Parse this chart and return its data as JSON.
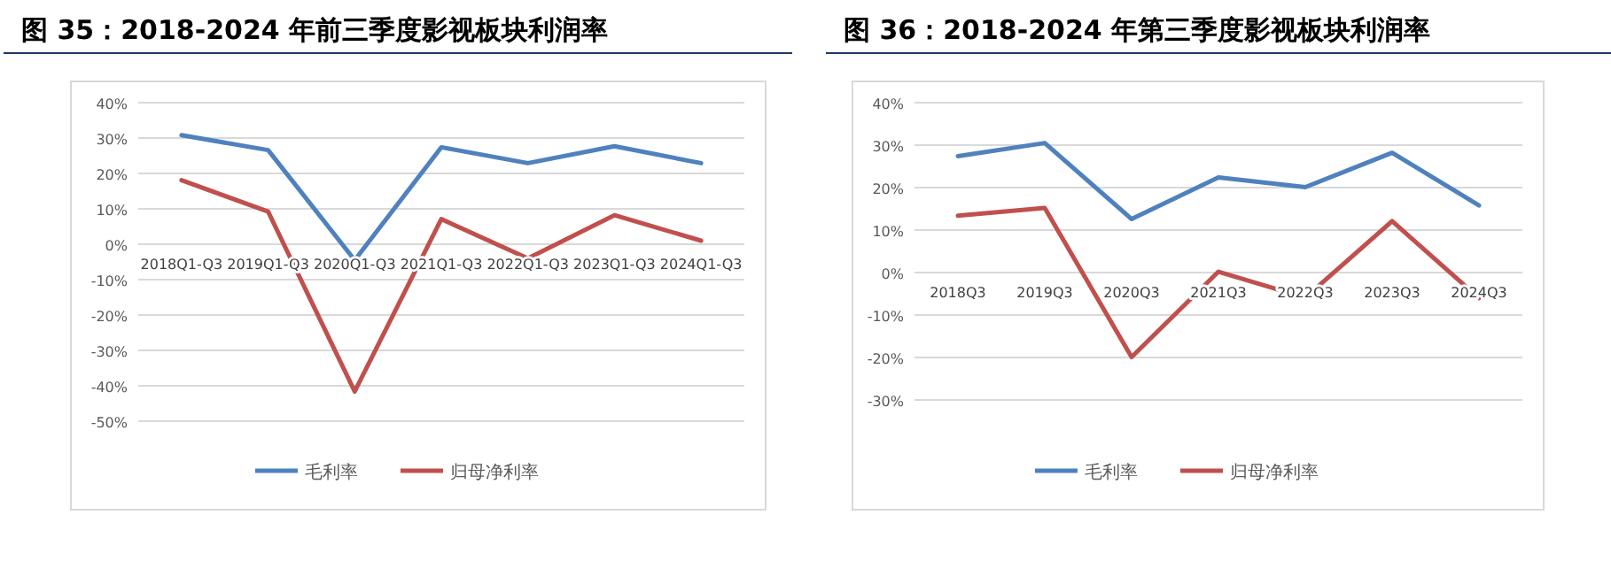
{
  "chart_data": [
    {
      "type": "line",
      "title": "图 35：2018-2024 年前三季度影视板块利润率",
      "categories": [
        "2018Q1-Q3",
        "2019Q1-Q3",
        "2020Q1-Q3",
        "2021Q1-Q3",
        "2022Q1-Q3",
        "2023Q1-Q3",
        "2024Q1-Q3"
      ],
      "series": [
        {
          "name": "毛利率",
          "color": "#4f81bd",
          "values": [
            30.8,
            26.6,
            -4.5,
            27.4,
            22.9,
            27.7,
            22.9
          ]
        },
        {
          "name": "归母净利率",
          "color": "#c0504d",
          "values": [
            18.1,
            9.2,
            -41.6,
            7.1,
            -4.0,
            8.2,
            1.0
          ]
        }
      ],
      "ylim": [
        -50,
        40
      ],
      "yticks": [
        {
          "value": -50,
          "label": "-50%"
        },
        {
          "value": -40,
          "label": "-40%"
        },
        {
          "value": -30,
          "label": "-30%"
        },
        {
          "value": -20,
          "label": "-20%"
        },
        {
          "value": -10,
          "label": "-10%"
        },
        {
          "value": 0,
          "label": "0%"
        },
        {
          "value": 10,
          "label": "10%"
        },
        {
          "value": 20,
          "label": "20%"
        },
        {
          "value": 30,
          "label": "30%"
        },
        {
          "value": 40,
          "label": "40%"
        }
      ],
      "grid": "y",
      "legend": "bottom"
    },
    {
      "type": "line",
      "title": "图 36：2018-2024 年第三季度影视板块利润率",
      "categories": [
        "2018Q3",
        "2019Q3",
        "2020Q3",
        "2021Q3",
        "2022Q3",
        "2023Q3",
        "2024Q3"
      ],
      "series": [
        {
          "name": "毛利率",
          "color": "#4f81bd",
          "values": [
            27.4,
            30.5,
            12.6,
            22.4,
            20.1,
            28.2,
            15.8
          ]
        },
        {
          "name": "归母净利率",
          "color": "#c0504d",
          "values": [
            13.4,
            15.2,
            -19.9,
            0.2,
            -5.9,
            12.1,
            -6.0
          ]
        }
      ],
      "ylim": [
        -30,
        40
      ],
      "yticks": [
        {
          "value": -30,
          "label": "-30%"
        },
        {
          "value": -20,
          "label": "-20%"
        },
        {
          "value": -10,
          "label": "-10%"
        },
        {
          "value": 0,
          "label": "0%"
        },
        {
          "value": 10,
          "label": "10%"
        },
        {
          "value": 20,
          "label": "20%"
        },
        {
          "value": 30,
          "label": "30%"
        },
        {
          "value": 40,
          "label": "40%"
        }
      ],
      "grid": "y",
      "legend": "bottom"
    }
  ]
}
